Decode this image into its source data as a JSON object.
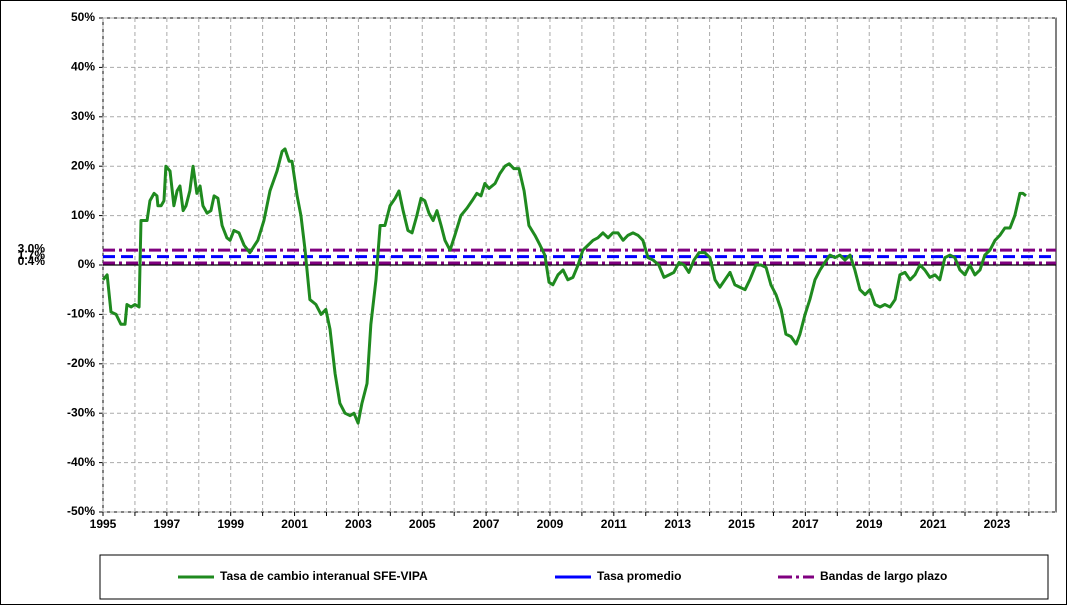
{
  "chart_data": {
    "type": "line",
    "xlim": [
      1995,
      2024.85
    ],
    "xticks": [
      1995,
      1997,
      1999,
      2001,
      2003,
      2005,
      2007,
      2009,
      2011,
      2013,
      2015,
      2017,
      2019,
      2021,
      2023
    ],
    "xminor": [
      1996,
      1998,
      2000,
      2002,
      2004,
      2006,
      2008,
      2010,
      2012,
      2014,
      2016,
      2018,
      2020,
      2022,
      2024
    ],
    "ylim": [
      -50,
      50
    ],
    "yticks": [
      {
        "value": -50,
        "label": "-50%"
      },
      {
        "value": -40,
        "label": "-40%"
      },
      {
        "value": -30,
        "label": "-30%"
      },
      {
        "value": -20,
        "label": "-20%"
      },
      {
        "value": -10,
        "label": "-10%"
      },
      {
        "value": 0,
        "label": "0%"
      },
      {
        "value": 10,
        "label": "10%"
      },
      {
        "value": 20,
        "label": "20%"
      },
      {
        "value": 30,
        "label": "30%"
      },
      {
        "value": 40,
        "label": "40%"
      },
      {
        "value": 50,
        "label": "50%"
      }
    ],
    "grid": true,
    "legend": "bottom",
    "series": [
      {
        "name": "Tasa de cambio interanual SFE-VIPA",
        "color": "#1f8a1f",
        "x": [
          1995.0,
          1995.13,
          1995.25,
          1995.41,
          1995.56,
          1995.69,
          1995.75,
          1995.88,
          1996.0,
          1996.13,
          1996.19,
          1996.38,
          1996.47,
          1996.6,
          1996.69,
          1996.72,
          1996.82,
          1996.91,
          1996.97,
          1997.1,
          1997.22,
          1997.32,
          1997.41,
          1997.51,
          1997.6,
          1997.72,
          1997.82,
          1997.94,
          1998.04,
          1998.13,
          1998.26,
          1998.38,
          1998.48,
          1998.6,
          1998.73,
          1998.88,
          1998.98,
          1999.1,
          1999.26,
          1999.42,
          1999.6,
          1999.85,
          2000.04,
          2000.23,
          2000.45,
          2000.61,
          2000.7,
          2000.83,
          2000.92,
          2001.08,
          2001.2,
          2001.33,
          2001.48,
          2001.67,
          2001.83,
          2001.98,
          2002.11,
          2002.27,
          2002.42,
          2002.58,
          2002.74,
          2002.86,
          2002.99,
          2003.11,
          2003.27,
          2003.39,
          2003.55,
          2003.68,
          2003.83,
          2003.99,
          2004.15,
          2004.27,
          2004.4,
          2004.55,
          2004.68,
          2004.83,
          2004.96,
          2005.08,
          2005.21,
          2005.34,
          2005.46,
          2005.59,
          2005.71,
          2005.87,
          2006.02,
          2006.21,
          2006.4,
          2006.56,
          2006.71,
          2006.84,
          2006.96,
          2007.09,
          2007.28,
          2007.43,
          2007.59,
          2007.72,
          2007.87,
          2008.03,
          2008.19,
          2008.34,
          2008.53,
          2008.69,
          2008.84,
          2008.97,
          2009.09,
          2009.25,
          2009.41,
          2009.56,
          2009.72,
          2009.88,
          2010.03,
          2010.19,
          2010.35,
          2010.5,
          2010.66,
          2010.82,
          2010.97,
          2011.13,
          2011.29,
          2011.44,
          2011.6,
          2011.76,
          2011.91,
          2012.07,
          2012.23,
          2012.41,
          2012.57,
          2012.73,
          2012.88,
          2013.04,
          2013.2,
          2013.35,
          2013.51,
          2013.67,
          2013.85,
          2014.01,
          2014.17,
          2014.32,
          2014.48,
          2014.64,
          2014.79,
          2014.95,
          2015.11,
          2015.26,
          2015.45,
          2015.61,
          2015.77,
          2015.92,
          2016.08,
          2016.24,
          2016.39,
          2016.55,
          2016.71,
          2016.83,
          2016.99,
          2017.14,
          2017.3,
          2017.46,
          2017.61,
          2017.77,
          2017.93,
          2018.08,
          2018.24,
          2018.4,
          2018.55,
          2018.71,
          2018.87,
          2019.02,
          2019.18,
          2019.34,
          2019.49,
          2019.65,
          2019.81,
          2019.96,
          2020.12,
          2020.28,
          2020.43,
          2020.59,
          2020.74,
          2020.9,
          2021.06,
          2021.21,
          2021.37,
          2021.53,
          2021.68,
          2021.84,
          2022.0,
          2022.15,
          2022.31,
          2022.47,
          2022.62,
          2022.78,
          2022.94,
          2023.09,
          2023.25,
          2023.41,
          2023.56,
          2023.72,
          2023.81,
          2023.91
        ],
        "values": [
          -3,
          -2,
          -9.5,
          -10,
          -12,
          -12,
          -8,
          -8.5,
          -8,
          -8.5,
          9,
          9,
          13,
          14.5,
          14,
          12,
          12,
          13,
          20,
          19,
          12,
          15,
          16,
          11,
          12,
          15,
          20,
          14.5,
          16,
          12,
          10.5,
          11,
          14,
          13.5,
          8,
          5.5,
          5,
          7,
          6.5,
          4,
          2.5,
          5,
          9,
          15,
          19,
          23,
          23.5,
          21,
          21,
          14,
          10,
          3,
          -7,
          -8,
          -10,
          -9,
          -13,
          -22,
          -28,
          -30,
          -30.5,
          -30,
          -32,
          -28,
          -24,
          -12,
          -3,
          8,
          8,
          12,
          13.5,
          15,
          11,
          7,
          6.5,
          10,
          13.5,
          13,
          10.5,
          9,
          11,
          8,
          5,
          3,
          6,
          10,
          11.5,
          13,
          14.5,
          14,
          16.5,
          15.5,
          16.5,
          18.5,
          20,
          20.5,
          19.5,
          19.5,
          15,
          8,
          6,
          4,
          2,
          -3.5,
          -4,
          -2,
          -1,
          -3,
          -2.5,
          0,
          3,
          4,
          5,
          5.5,
          6.5,
          5.5,
          6.5,
          6.5,
          5,
          6,
          6.5,
          6,
          5,
          1.5,
          1,
          0,
          -2.5,
          -2,
          -1.5,
          0.5,
          0,
          -1.5,
          1,
          2.5,
          2.5,
          1.5,
          -3,
          -4.5,
          -3,
          -1.5,
          -4,
          -4.5,
          -5,
          -3,
          0,
          0,
          -0.5,
          -4,
          -6,
          -9,
          -14,
          -14.5,
          -16,
          -14,
          -10,
          -7,
          -3,
          -1,
          0.5,
          2,
          1.5,
          2,
          1,
          2,
          -1,
          -5,
          -6,
          -5,
          -8,
          -8.5,
          -8,
          -8.5,
          -7,
          -2,
          -1.5,
          -3,
          -2,
          0,
          -1,
          -2.5,
          -2,
          -3,
          1.5,
          2,
          1.5,
          -1,
          -2,
          0,
          -2,
          -1,
          2,
          3,
          5,
          6,
          7.5,
          7.5,
          10,
          14.5,
          14.5,
          14
        ]
      }
    ],
    "reference_lines": [
      {
        "name": "Tasa promedio",
        "color": "#0000ff",
        "style": "dashed",
        "values": [
          1.7
        ],
        "value_labels": [
          "1.7%"
        ]
      },
      {
        "name": "Bandas de largo plazo",
        "color": "#800080",
        "style": "dashdot",
        "values": [
          3.0,
          0.4
        ],
        "value_labels": [
          "3.0%",
          "0.4%"
        ]
      }
    ]
  }
}
